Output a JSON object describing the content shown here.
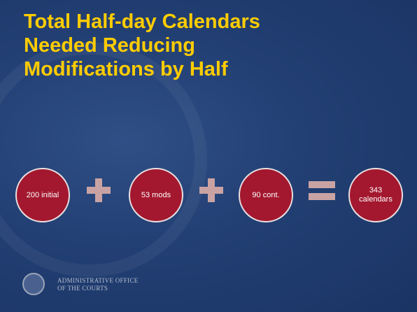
{
  "title": {
    "lines": [
      "Total Half-day Calendars",
      "Needed Reducing",
      "Modifications by Half"
    ]
  },
  "equation": [
    {
      "lines": [
        "200 initial"
      ]
    },
    {
      "lines": [
        "53 mods"
      ]
    },
    {
      "lines": [
        "90 cont."
      ]
    },
    {
      "lines": [
        "343",
        "calendars"
      ]
    }
  ],
  "footer": {
    "lines": [
      "ADMINISTRATIVE OFFICE",
      "OF THE COURTS"
    ]
  }
}
